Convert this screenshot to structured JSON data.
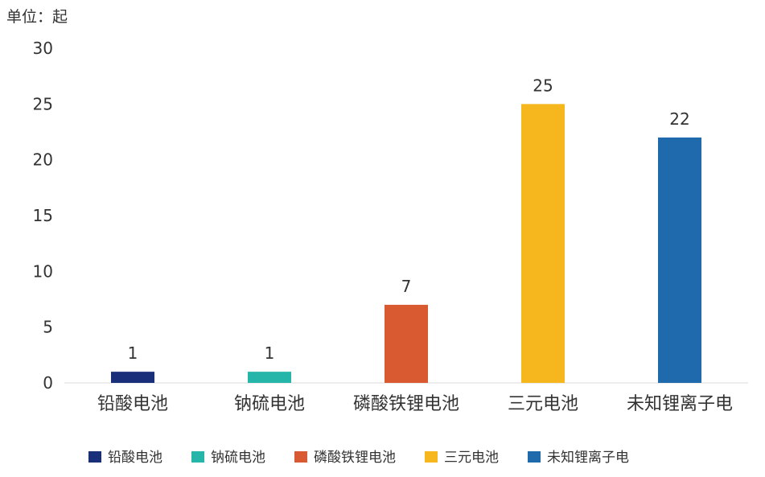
{
  "chart_data": {
    "type": "bar",
    "unit_label": "单位：起",
    "categories": [
      "铅酸电池",
      "钠硫电池",
      "磷酸铁锂电池",
      "三元电池",
      "未知锂离子电"
    ],
    "values": [
      1,
      1,
      7,
      25,
      22
    ],
    "colors": [
      "#1a2f7a",
      "#26b5a9",
      "#d95a30",
      "#f5b61e",
      "#1f6aad"
    ],
    "ylim": [
      0,
      30
    ],
    "yticks": [
      0,
      5,
      10,
      15,
      20,
      25,
      30
    ],
    "grid": false,
    "legend": "bottom",
    "data_labels": true
  }
}
